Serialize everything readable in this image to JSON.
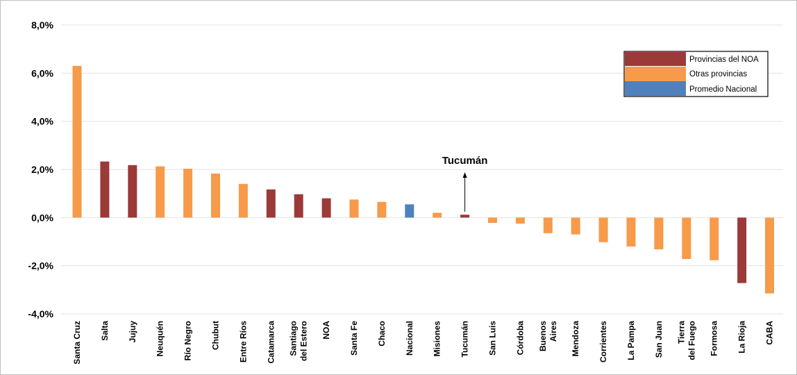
{
  "chart_data": {
    "type": "bar",
    "title": "",
    "xlabel": "",
    "ylabel": "",
    "ylim": [
      -4,
      8
    ],
    "y_ticks": [
      8,
      6,
      4,
      2,
      0,
      -2,
      -4
    ],
    "y_tick_labels": [
      "8,0%",
      "6,0%",
      "4,0%",
      "2,0%",
      "0,0%",
      "-2,0%",
      "-4,0%"
    ],
    "grid": true,
    "legend_position": "top-right",
    "colors": {
      "noa": "#9b3a38",
      "otras": "#f79a4a",
      "nacional": "#4f81bd"
    },
    "legend": [
      {
        "key": "noa",
        "label": "Provincias del NOA"
      },
      {
        "key": "otras",
        "label": "Otras provincias"
      },
      {
        "key": "nacional",
        "label": "Promedio Nacional"
      }
    ],
    "categories": [
      [
        "Santa Cruz"
      ],
      [
        "Salta"
      ],
      [
        "Jujuy"
      ],
      [
        "Neuquén"
      ],
      [
        "Río Negro"
      ],
      [
        "Chubut"
      ],
      [
        "Entre Ríos"
      ],
      [
        "Catamarca"
      ],
      [
        "Santiago",
        "del Estero"
      ],
      [
        "NOA"
      ],
      [
        "Santa Fe"
      ],
      [
        "Chaco"
      ],
      [
        "Nacional"
      ],
      [
        "Misiones"
      ],
      [
        "Tucumán"
      ],
      [
        "San Luis"
      ],
      [
        "Córdoba"
      ],
      [
        "Buenos",
        "Aires"
      ],
      [
        "Mendoza"
      ],
      [
        "Corrientes"
      ],
      [
        "La Pampa"
      ],
      [
        "San Juan"
      ],
      [
        "Tierra",
        "del Fuego"
      ],
      [
        "Formosa"
      ],
      [
        "La Rioja"
      ],
      [
        "CABA"
      ]
    ],
    "values": [
      6.3,
      2.33,
      2.18,
      2.13,
      2.03,
      1.83,
      1.4,
      1.17,
      0.97,
      0.8,
      0.75,
      0.65,
      0.55,
      0.2,
      0.12,
      -0.22,
      -0.25,
      -0.65,
      -0.7,
      -1.02,
      -1.2,
      -1.32,
      -1.72,
      -1.77,
      -2.72,
      -3.15
    ],
    "groups": [
      "otras",
      "noa",
      "noa",
      "otras",
      "otras",
      "otras",
      "otras",
      "noa",
      "noa",
      "noa",
      "otras",
      "otras",
      "nacional",
      "otras",
      "noa",
      "otras",
      "otras",
      "otras",
      "otras",
      "otras",
      "otras",
      "otras",
      "otras",
      "otras",
      "noa",
      "otras"
    ],
    "annotation": {
      "text": "Tucumán",
      "category_index": 14
    }
  }
}
